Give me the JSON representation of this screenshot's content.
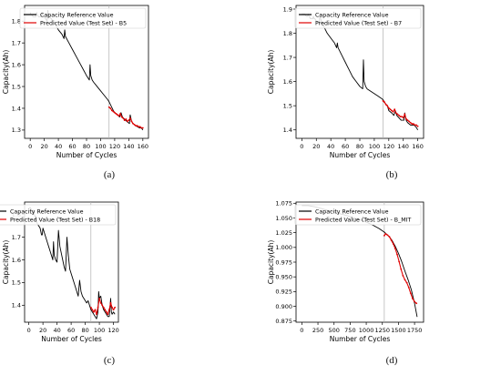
{
  "figure": {
    "captions": [
      "(a)",
      "(b)",
      "(c)",
      "(d)"
    ]
  },
  "colors": {
    "reference": "#000000",
    "predicted": "#e00000",
    "split_line": "#b0b0b0",
    "axis": "#000000"
  },
  "chart_data": [
    {
      "type": "line",
      "caption": "(a)",
      "xlabel": "Number of Cycles",
      "ylabel": "Capacity(Ah)",
      "xlim": [
        -8,
        168
      ],
      "ylim": [
        1.262,
        1.872
      ],
      "xticks": [
        0,
        20,
        40,
        60,
        80,
        100,
        120,
        140,
        160
      ],
      "yticks": [
        1.3,
        1.4,
        1.5,
        1.6,
        1.7,
        1.8
      ],
      "split_x": 112,
      "legend": "top-right",
      "grid": false,
      "series": [
        {
          "name": "Capacity Reference Value",
          "role": "reference",
          "x": [
            0,
            1,
            2,
            4,
            6,
            8,
            9,
            10,
            12,
            14,
            16,
            17,
            18,
            20,
            22,
            24,
            25,
            26,
            27,
            28,
            30,
            35,
            40,
            45,
            48,
            49,
            50,
            55,
            60,
            65,
            70,
            75,
            80,
            84,
            85,
            86,
            88,
            90,
            95,
            100,
            105,
            110,
            112,
            115,
            118,
            120,
            124,
            127,
            129,
            131,
            134,
            137,
            141,
            142,
            144,
            146,
            150,
            155,
            158,
            160
          ],
          "y": [
            1.84,
            1.83,
            1.83,
            1.82,
            1.82,
            1.82,
            1.84,
            1.83,
            1.82,
            1.82,
            1.82,
            1.84,
            1.83,
            1.82,
            1.81,
            1.8,
            1.85,
            1.83,
            1.82,
            1.82,
            1.81,
            1.79,
            1.76,
            1.74,
            1.72,
            1.76,
            1.73,
            1.7,
            1.67,
            1.64,
            1.61,
            1.58,
            1.55,
            1.53,
            1.6,
            1.55,
            1.53,
            1.52,
            1.5,
            1.48,
            1.46,
            1.44,
            1.43,
            1.41,
            1.39,
            1.38,
            1.37,
            1.36,
            1.38,
            1.36,
            1.35,
            1.34,
            1.33,
            1.37,
            1.34,
            1.33,
            1.32,
            1.31,
            1.31,
            1.3
          ]
        },
        {
          "name": "Predicted Value (Test Set) - B5",
          "role": "predicted",
          "x": [
            112,
            114,
            116,
            118,
            120,
            122,
            124,
            126,
            128,
            130,
            132,
            134,
            136,
            138,
            140,
            142,
            144,
            146,
            148,
            150,
            152,
            154,
            156,
            158,
            160
          ],
          "y": [
            1.405,
            1.4,
            1.39,
            1.385,
            1.38,
            1.375,
            1.37,
            1.365,
            1.375,
            1.36,
            1.355,
            1.345,
            1.35,
            1.34,
            1.345,
            1.355,
            1.34,
            1.33,
            1.325,
            1.32,
            1.32,
            1.315,
            1.315,
            1.31,
            1.31
          ]
        }
      ]
    },
    {
      "type": "line",
      "caption": "(b)",
      "xlabel": "Number of Cycles",
      "ylabel": "Capacity(Ah)",
      "xlim": [
        -8,
        168
      ],
      "ylim": [
        1.365,
        1.915
      ],
      "xticks": [
        0,
        20,
        40,
        60,
        80,
        100,
        120,
        140,
        160
      ],
      "yticks": [
        1.4,
        1.5,
        1.6,
        1.7,
        1.8,
        1.9
      ],
      "split_x": 112,
      "legend": "top-right",
      "grid": false,
      "series": [
        {
          "name": "Capacity Reference Value",
          "role": "reference",
          "x": [
            0,
            2,
            4,
            6,
            8,
            9,
            10,
            12,
            15,
            16,
            17,
            18,
            20,
            24,
            25,
            26,
            27,
            28,
            30,
            35,
            40,
            45,
            48,
            49,
            50,
            55,
            60,
            65,
            70,
            75,
            80,
            84,
            85,
            86,
            88,
            90,
            95,
            100,
            105,
            110,
            112,
            115,
            118,
            120,
            124,
            127,
            129,
            131,
            134,
            137,
            141,
            142,
            144,
            146,
            150,
            155,
            158,
            160
          ],
          "y": [
            1.88,
            1.88,
            1.88,
            1.87,
            1.87,
            1.88,
            1.87,
            1.86,
            1.86,
            1.87,
            1.86,
            1.86,
            1.85,
            1.84,
            1.88,
            1.86,
            1.85,
            1.84,
            1.83,
            1.8,
            1.78,
            1.76,
            1.74,
            1.76,
            1.74,
            1.71,
            1.68,
            1.65,
            1.62,
            1.6,
            1.58,
            1.57,
            1.69,
            1.6,
            1.58,
            1.57,
            1.56,
            1.55,
            1.54,
            1.53,
            1.525,
            1.51,
            1.5,
            1.48,
            1.47,
            1.46,
            1.48,
            1.46,
            1.45,
            1.44,
            1.44,
            1.47,
            1.44,
            1.43,
            1.42,
            1.42,
            1.41,
            1.4
          ]
        },
        {
          "name": "Predicted Value (Test Set) - B7",
          "role": "predicted",
          "x": [
            112,
            114,
            116,
            118,
            120,
            122,
            124,
            126,
            128,
            130,
            132,
            134,
            136,
            138,
            140,
            142,
            144,
            146,
            148,
            150,
            152,
            154,
            156,
            158,
            160
          ],
          "y": [
            1.52,
            1.515,
            1.505,
            1.5,
            1.49,
            1.485,
            1.48,
            1.475,
            1.485,
            1.47,
            1.465,
            1.46,
            1.455,
            1.455,
            1.45,
            1.465,
            1.445,
            1.44,
            1.435,
            1.43,
            1.425,
            1.425,
            1.42,
            1.42,
            1.415
          ]
        }
      ]
    },
    {
      "type": "line",
      "caption": "(c)",
      "xlabel": "Number of Cycles",
      "ylabel": "Capacity(Ah)",
      "xlim": [
        -6,
        127
      ],
      "ylim": [
        1.325,
        1.855
      ],
      "xticks": [
        0,
        20,
        40,
        60,
        80,
        100,
        120
      ],
      "yticks": [
        1.4,
        1.5,
        1.6,
        1.7,
        1.8
      ],
      "split_x": 88,
      "legend": "top-right",
      "grid": false,
      "series": [
        {
          "name": "Capacity Reference Value",
          "role": "reference",
          "x": [
            0,
            2,
            4,
            6,
            7,
            8,
            10,
            12,
            14,
            16,
            18,
            19,
            20,
            22,
            24,
            26,
            28,
            30,
            32,
            34,
            35,
            36,
            38,
            40,
            41,
            42,
            44,
            46,
            48,
            50,
            52,
            53,
            54,
            56,
            58,
            60,
            62,
            64,
            66,
            68,
            70,
            72,
            74,
            76,
            78,
            80,
            82,
            84,
            86,
            88,
            90,
            92,
            94,
            96,
            98,
            99,
            100,
            102,
            104,
            106,
            108,
            110,
            112,
            114,
            116,
            117,
            118,
            120,
            122
          ],
          "y": [
            1.83,
            1.83,
            1.82,
            1.8,
            1.82,
            1.8,
            1.78,
            1.76,
            1.75,
            1.74,
            1.71,
            1.71,
            1.74,
            1.72,
            1.7,
            1.68,
            1.66,
            1.64,
            1.62,
            1.6,
            1.68,
            1.62,
            1.6,
            1.59,
            1.66,
            1.73,
            1.66,
            1.63,
            1.6,
            1.57,
            1.55,
            1.62,
            1.7,
            1.62,
            1.56,
            1.54,
            1.52,
            1.5,
            1.48,
            1.46,
            1.44,
            1.51,
            1.46,
            1.44,
            1.43,
            1.42,
            1.41,
            1.42,
            1.4,
            1.38,
            1.37,
            1.36,
            1.35,
            1.34,
            1.37,
            1.46,
            1.43,
            1.44,
            1.4,
            1.38,
            1.37,
            1.36,
            1.35,
            1.35,
            1.43,
            1.37,
            1.36,
            1.37,
            1.36
          ]
        },
        {
          "name": "Predicted Value (Test Set) - B18",
          "role": "predicted",
          "x": [
            88,
            90,
            92,
            94,
            96,
            98,
            100,
            102,
            104,
            106,
            108,
            110,
            112,
            114,
            116,
            118,
            120,
            122
          ],
          "y": [
            1.39,
            1.38,
            1.37,
            1.38,
            1.36,
            1.39,
            1.43,
            1.41,
            1.4,
            1.39,
            1.38,
            1.37,
            1.36,
            1.38,
            1.41,
            1.39,
            1.38,
            1.39
          ]
        }
      ]
    },
    {
      "type": "line",
      "caption": "(d)",
      "xlabel": "Number of Cycles",
      "ylabel": "Capacity(Ah)",
      "xlim": [
        -90,
        1890
      ],
      "ylim": [
        0.873,
        1.077
      ],
      "xticks": [
        0,
        250,
        500,
        750,
        1000,
        1250,
        1500,
        1750
      ],
      "yticks": [
        0.875,
        0.9,
        0.925,
        0.95,
        0.975,
        1.0,
        1.025,
        1.05,
        1.075
      ],
      "split_x": 1280,
      "legend": "top-right",
      "grid": false,
      "series": [
        {
          "name": "Capacity Reference Value",
          "role": "reference",
          "x": [
            0,
            100,
            200,
            300,
            400,
            500,
            600,
            700,
            800,
            900,
            1000,
            1100,
            1200,
            1280,
            1350,
            1400,
            1450,
            1500,
            1550,
            1600,
            1650,
            1700,
            1750,
            1790
          ],
          "y": [
            1.071,
            1.071,
            1.069,
            1.066,
            1.063,
            1.06,
            1.057,
            1.054,
            1.05,
            1.047,
            1.043,
            1.038,
            1.032,
            1.026,
            1.019,
            1.012,
            1.002,
            0.99,
            0.976,
            0.96,
            0.945,
            0.928,
            0.905,
            0.882
          ]
        },
        {
          "name": "Predicted Value (Test Set) - B_MIT",
          "role": "predicted",
          "x": [
            1280,
            1300,
            1330,
            1360,
            1390,
            1420,
            1450,
            1480,
            1510,
            1540,
            1570,
            1600,
            1630,
            1660,
            1690,
            1720,
            1750,
            1780
          ],
          "y": [
            1.02,
            1.023,
            1.021,
            1.018,
            1.012,
            1.006,
            0.998,
            0.988,
            0.976,
            0.963,
            0.952,
            0.945,
            0.94,
            0.932,
            0.922,
            0.913,
            0.908,
            0.905
          ]
        }
      ]
    }
  ]
}
